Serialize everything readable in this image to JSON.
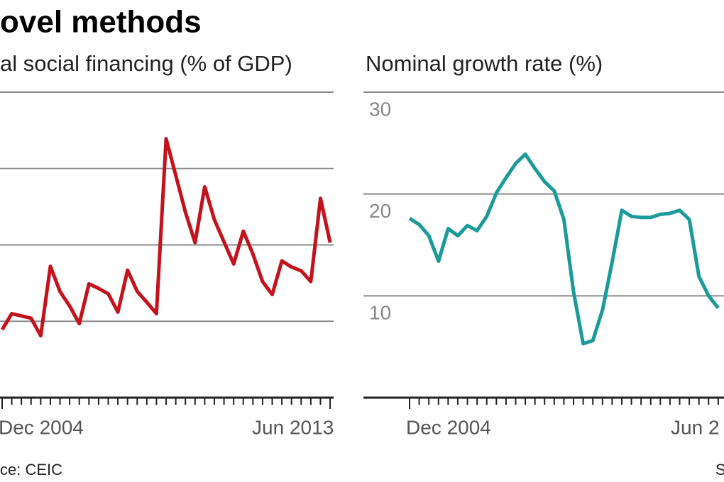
{
  "header": {
    "title": "ovel methods"
  },
  "chart_data": [
    {
      "type": "line",
      "title": "al social financing (% of GDP)",
      "categories": [
        "Dec 2004",
        null,
        null,
        null,
        null,
        null,
        null,
        null,
        null,
        null,
        null,
        null,
        null,
        null,
        null,
        null,
        null,
        null,
        null,
        null,
        null,
        null,
        null,
        null,
        null,
        null,
        null,
        null,
        null,
        null,
        null,
        null,
        null,
        null,
        "Jun 2013"
      ],
      "series": [
        {
          "color": "#c4121c",
          "values": [
            0.89,
            1.1,
            1.07,
            1.04,
            0.81,
            1.72,
            1.39,
            1.2,
            0.97,
            1.49,
            1.43,
            1.36,
            1.12,
            1.67,
            1.39,
            1.25,
            1.1,
            3.39,
            2.91,
            2.43,
            2.03,
            2.76,
            2.33,
            2.04,
            1.75,
            2.18,
            1.88,
            1.52,
            1.35,
            1.79,
            1.71,
            1.66,
            1.52,
            2.61,
            2.03
          ]
        }
      ],
      "ylim": [
        0,
        4
      ],
      "ygrid": [
        1,
        2,
        3,
        4
      ],
      "grid": true
    },
    {
      "type": "line",
      "title": "Nominal growth rate (%)",
      "categories": [
        "Dec 2004",
        null,
        null,
        null,
        null,
        null,
        null,
        null,
        null,
        null,
        null,
        null,
        null,
        null,
        null,
        null,
        null,
        null,
        null,
        null,
        null,
        null,
        null,
        null,
        null,
        null,
        null,
        null,
        null,
        null,
        null,
        null,
        null,
        null,
        "Jun 2"
      ],
      "series": [
        {
          "color": "#1a9a98",
          "values": [
            17.6,
            17.0,
            15.9,
            13.4,
            16.6,
            15.9,
            16.9,
            16.4,
            17.8,
            20.1,
            21.6,
            23.0,
            23.9,
            22.5,
            21.2,
            20.3,
            17.5,
            10.4,
            5.3,
            5.6,
            8.6,
            13.3,
            18.4,
            17.8,
            17.7,
            17.7,
            18.0,
            18.1,
            18.4,
            17.5,
            11.9,
            10.0,
            8.8,
            null,
            null
          ]
        }
      ],
      "ylim": [
        0,
        30
      ],
      "yticks": [
        10,
        20,
        30
      ],
      "grid": true
    }
  ],
  "source": {
    "left": "ce: CEIC",
    "right": "S"
  }
}
